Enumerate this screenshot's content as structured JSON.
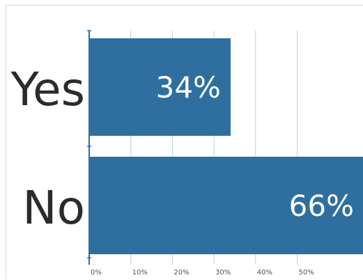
{
  "chart_data": {
    "type": "bar",
    "orientation": "horizontal",
    "categories": [
      "Yes",
      "No"
    ],
    "values": [
      34,
      66
    ],
    "value_labels": [
      "34%",
      "66%"
    ],
    "xlim": [
      0,
      66
    ],
    "x_ticks": [
      "0%",
      "10%",
      "20%",
      "30%",
      "40%",
      "50%"
    ],
    "x_tick_values": [
      0,
      10,
      20,
      30,
      40,
      50
    ],
    "grid": true,
    "legend": "none",
    "colors": {
      "bar": "#2f6f9f",
      "axis": "#2f6f9f",
      "category_text": "#2b2b2b",
      "value_text": "#ffffff",
      "tick_text": "#555555",
      "grid": "#3a7aa8"
    }
  }
}
